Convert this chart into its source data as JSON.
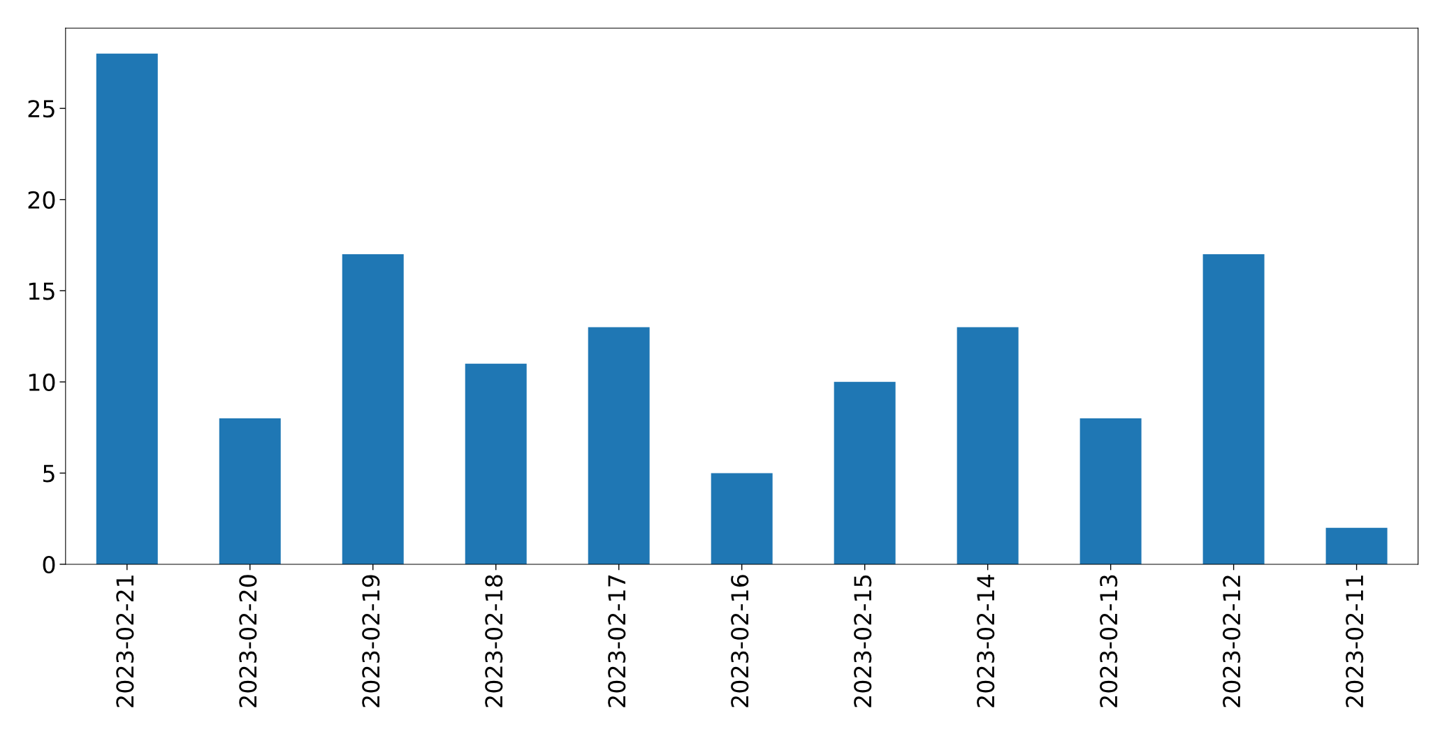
{
  "chart_data": {
    "type": "bar",
    "categories": [
      "2023-02-21",
      "2023-02-20",
      "2023-02-19",
      "2023-02-18",
      "2023-02-17",
      "2023-02-16",
      "2023-02-15",
      "2023-02-14",
      "2023-02-13",
      "2023-02-12",
      "2023-02-11"
    ],
    "values": [
      28,
      8,
      17,
      11,
      13,
      5,
      10,
      13,
      8,
      17,
      2
    ],
    "color": "#1f77b4",
    "ylim": [
      0,
      29.4
    ],
    "yticks": [
      0,
      5,
      10,
      15,
      20,
      25
    ],
    "grid": false
  }
}
